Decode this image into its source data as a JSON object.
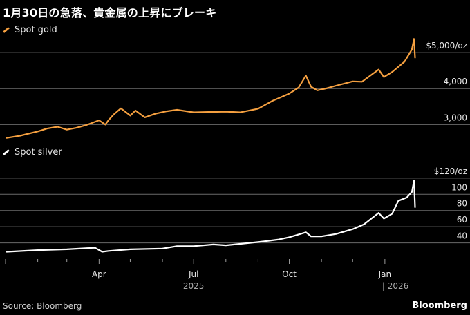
{
  "title": "1月30日の急落、貴金属の上昇にブレーキ",
  "source": "Source: Bloomberg",
  "brand": "Bloomberg",
  "colors": {
    "gold": "#f5a040",
    "silver": "#ffffff",
    "grid": "#6a6a6a",
    "background": "#000000"
  },
  "chart_data": [
    {
      "type": "line",
      "series": [
        {
          "name": "Spot gold",
          "color": "#f5a040"
        }
      ],
      "y_ticks": [
        {
          "value": 3000,
          "label": "3,000"
        },
        {
          "value": 4000,
          "label": "4,000"
        },
        {
          "value": 5000,
          "label": "$5,000/oz"
        }
      ],
      "ylim": [
        2700,
        5500
      ],
      "x": [
        "2025-01-02",
        "2025-01-15",
        "2025-02-01",
        "2025-02-10",
        "2025-02-20",
        "2025-03-01",
        "2025-03-10",
        "2025-03-20",
        "2025-04-01",
        "2025-04-07",
        "2025-04-10",
        "2025-04-15",
        "2025-04-22",
        "2025-05-01",
        "2025-05-06",
        "2025-05-15",
        "2025-05-25",
        "2025-06-05",
        "2025-06-15",
        "2025-07-01",
        "2025-07-15",
        "2025-08-01",
        "2025-08-15",
        "2025-09-01",
        "2025-09-15",
        "2025-10-01",
        "2025-10-10",
        "2025-10-17",
        "2025-10-22",
        "2025-10-28",
        "2025-11-05",
        "2025-11-15",
        "2025-12-01",
        "2025-12-10",
        "2025-12-26",
        "2025-12-31",
        "2026-01-08",
        "2026-01-20",
        "2026-01-27",
        "2026-01-29",
        "2026-01-30"
      ],
      "values": [
        2630,
        2690,
        2810,
        2890,
        2940,
        2860,
        2910,
        2990,
        3120,
        3000,
        3120,
        3280,
        3450,
        3250,
        3390,
        3200,
        3300,
        3370,
        3410,
        3340,
        3350,
        3360,
        3340,
        3440,
        3660,
        3860,
        4030,
        4360,
        4050,
        3950,
        4000,
        4080,
        4200,
        4190,
        4530,
        4320,
        4460,
        4750,
        5090,
        5380,
        4860
      ]
    },
    {
      "type": "line",
      "series": [
        {
          "name": "Spot silver",
          "color": "#ffffff"
        }
      ],
      "y_ticks": [
        {
          "value": 40,
          "label": "40"
        },
        {
          "value": 60,
          "label": "60"
        },
        {
          "value": 80,
          "label": "80"
        },
        {
          "value": 100,
          "label": "100"
        },
        {
          "value": 120,
          "label": "$120/oz"
        }
      ],
      "ylim": [
        20,
        125
      ],
      "x": [
        "2025-01-02",
        "2025-02-01",
        "2025-03-01",
        "2025-03-28",
        "2025-04-04",
        "2025-04-10",
        "2025-05-01",
        "2025-06-01",
        "2025-06-15",
        "2025-07-01",
        "2025-07-20",
        "2025-08-01",
        "2025-09-01",
        "2025-09-20",
        "2025-10-01",
        "2025-10-17",
        "2025-10-22",
        "2025-11-01",
        "2025-11-15",
        "2025-12-01",
        "2025-12-12",
        "2025-12-26",
        "2025-12-31",
        "2026-01-08",
        "2026-01-14",
        "2026-01-22",
        "2026-01-27",
        "2026-01-29",
        "2026-01-30"
      ],
      "values": [
        29,
        31,
        32,
        34,
        29,
        30,
        32,
        33,
        36,
        36,
        38,
        37,
        41,
        44,
        47,
        53,
        48,
        48,
        51,
        57,
        63,
        77,
        70,
        76,
        92,
        96,
        103,
        117,
        84
      ]
    }
  ],
  "x_axis": {
    "months": [
      "Apr",
      "Jul",
      "Oct",
      "Jan"
    ],
    "year_2025": "2025",
    "year_2026": "| 2026"
  }
}
